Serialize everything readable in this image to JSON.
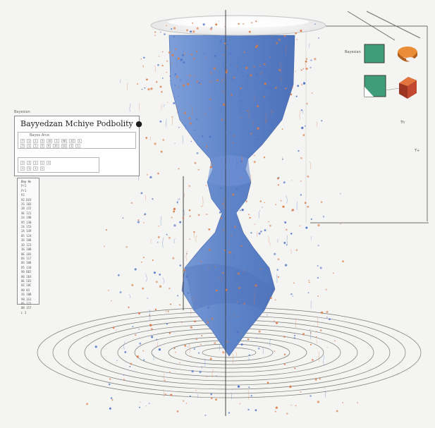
{
  "window": {
    "label": "Bayesian",
    "title": "Bayyedzan Mchiye Podbolity",
    "title_suffix": "●"
  },
  "legend": {
    "label": "Bayesian",
    "secondary": "Th",
    "axis_label": "T+"
  },
  "controls": {
    "header": "Bayes Arce",
    "rows": [
      [
        "7",
        "1",
        "1",
        "3",
        "10",
        "1",
        "98",
        "10",
        "1"
      ],
      [
        "7",
        "1",
        "1",
        "3",
        "9",
        "10",
        "10",
        "1",
        "1"
      ]
    ],
    "group2": [
      "1",
      "1",
      "1",
      "1",
      "1"
    ],
    "group2b": [
      "1",
      "1",
      "1",
      "1"
    ]
  },
  "list": {
    "header": "Bay Hs",
    "items": [
      "Pr1",
      "Pr1",
      "P2",
      "92 DCU",
      "2S 103",
      "2B 115",
      "9E 121",
      "24 19B",
      "95 130",
      "24 153",
      "2A 149",
      "05 124",
      "36 180",
      "2D 123",
      "36 10B",
      "0E 103",
      "0S 117",
      "0S 100",
      "D5 110",
      "98 BE5",
      "80 2EA",
      "0E 5ES",
      "8Z 18C",
      "00 03",
      "26 10B",
      "90 1G1",
      "8S 121",
      "08 157",
      "L 3"
    ]
  },
  "colors": {
    "blue_volume": "#5d83c8",
    "blue_dark": "#3f64ad",
    "particle_orange": "#dd7a45",
    "particle_blue": "#4f74c8",
    "green_square": "#3f9e79",
    "orange_shape": "#e98d37",
    "red_shape": "#c2492f"
  },
  "icons": [
    "green-square-icon",
    "orange-drum-icon",
    "red-cube-icon"
  ]
}
